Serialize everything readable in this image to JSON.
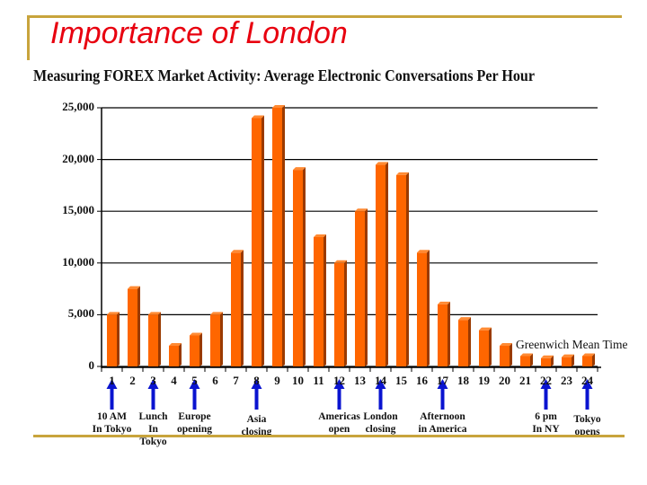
{
  "slide": {
    "title": "Importance of London",
    "subtitle": "Measuring FOREX Market Activity: Average Electronic Conversations Per Hour",
    "accent_color": "#c8a43c",
    "title_color": "#e8000f",
    "bar_color": "#ff6600",
    "arrow_color": "#0a14d0"
  },
  "chart_data": {
    "type": "bar",
    "title": "Measuring FOREX Market Activity: Average Electronic Conversations Per Hour",
    "xlabel": "Greenwich Mean Time",
    "ylabel": "",
    "ylim": [
      0,
      25000
    ],
    "yticks": [
      "0",
      "5,000",
      "10,000",
      "15,000",
      "20,000",
      "25,000"
    ],
    "grid": true,
    "categories": [
      "1",
      "2",
      "3",
      "4",
      "5",
      "6",
      "7",
      "8",
      "9",
      "10",
      "11",
      "12",
      "13",
      "14",
      "15",
      "16",
      "17",
      "18",
      "19",
      "20",
      "21",
      "22",
      "23",
      "24"
    ],
    "values": [
      5000,
      7500,
      5000,
      2000,
      3000,
      5000,
      11000,
      24000,
      25000,
      19000,
      12500,
      10000,
      15000,
      19500,
      18500,
      11000,
      6000,
      4500,
      3500,
      2000,
      1000,
      800,
      900,
      1000
    ],
    "annotations": [
      {
        "hour": "1",
        "text": "10 AM\nIn Tokyo"
      },
      {
        "hour": "3",
        "text": "Lunch\nIn\nTokyo"
      },
      {
        "hour": "5",
        "text": "Europe\nopening"
      },
      {
        "hour": "8",
        "text": "Asia\nclosing"
      },
      {
        "hour": "12",
        "text": "Americas\nopen"
      },
      {
        "hour": "14",
        "text": "London\nclosing"
      },
      {
        "hour": "17",
        "text": "Afternoon\nin America"
      },
      {
        "hour": "22",
        "text": "6 pm\nIn NY"
      },
      {
        "hour": "24",
        "text": "Tokyo\nopens"
      }
    ]
  }
}
